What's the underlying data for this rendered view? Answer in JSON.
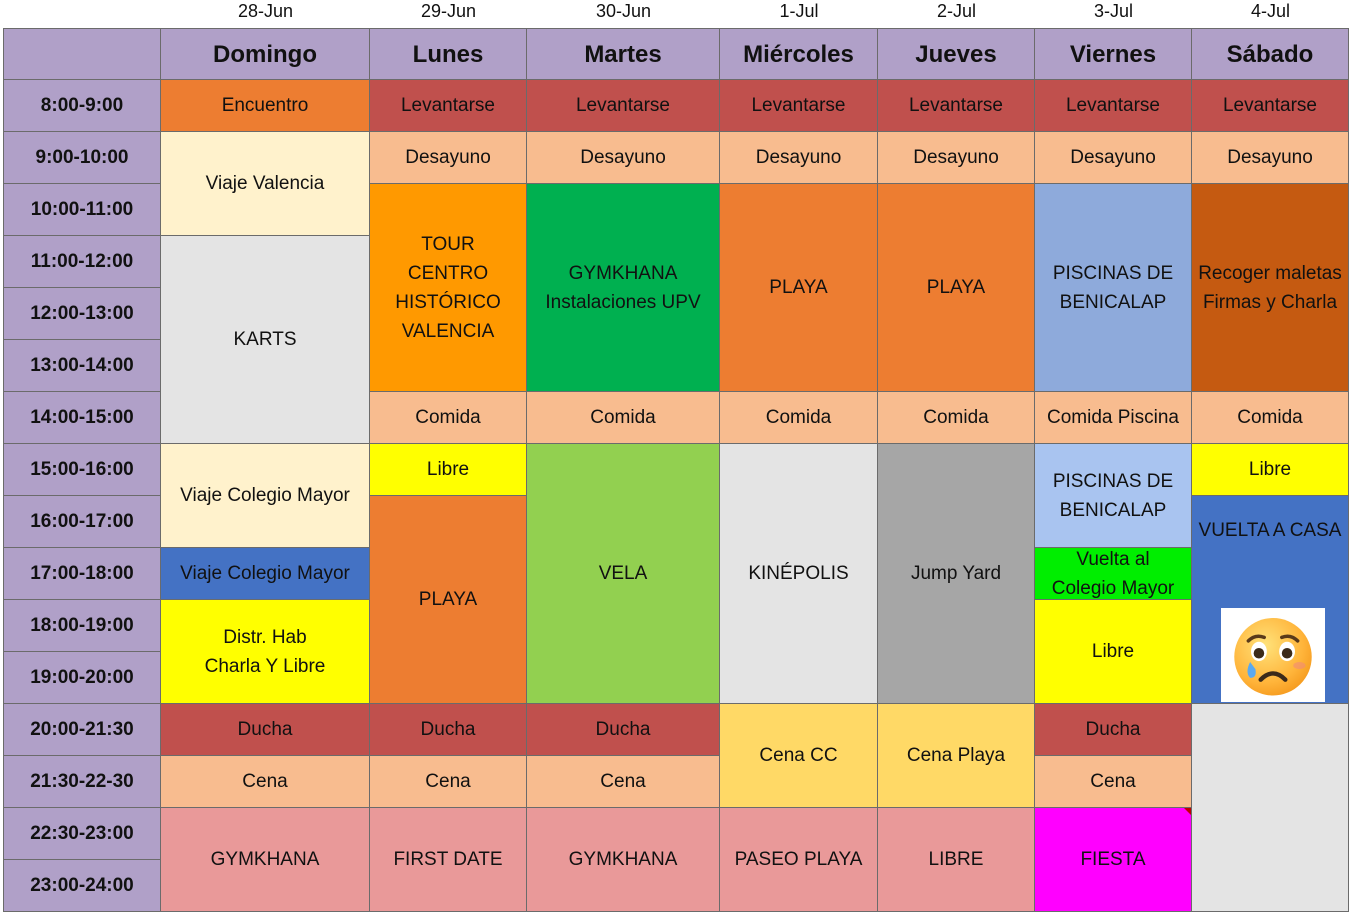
{
  "dates": [
    "28-Jun",
    "29-Jun",
    "30-Jun",
    "1-Jul",
    "2-Jul",
    "3-Jul",
    "4-Jul"
  ],
  "days": [
    "Domingo",
    "Lunes",
    "Martes",
    "Miércoles",
    "Jueves",
    "Viernes",
    "Sábado"
  ],
  "times": [
    "8:00-9:00",
    "9:00-10:00",
    "10:00-11:00",
    "11:00-12:00",
    "12:00-13:00",
    "13:00-14:00",
    "14:00-15:00",
    "15:00-16:00",
    "16:00-17:00",
    "17:00-18:00",
    "18:00-19:00",
    "19:00-20:00",
    "20:00-21:30",
    "21:30-22-30",
    "22:30-23:00",
    "23:00-24:00"
  ],
  "colors": {
    "header": "#b0a0c8",
    "encuentro": "#ed7d31",
    "levantarse": "#c0504d",
    "desayuno": "#f8bc8f",
    "viaje_valencia": "#fff2cc",
    "karts": "#e4e4e4",
    "tour": "#ff9900",
    "gymkhana_upv": "#00b050",
    "playa": "#ed7d31",
    "piscinas": "#8eaadb",
    "recoger": "#c55a11",
    "libre_yellow": "#ffff00",
    "viaje_mayor_light": "#fff2cc",
    "viaje_mayor_blue": "#4472c4",
    "vela": "#92d050",
    "kinepolis": "#e4e4e4",
    "jump_yard": "#a6a6a6",
    "piscinas_light": "#a9c4f0",
    "vuelta_green": "#00ee00",
    "vuelta_casa": "#4472c4",
    "cena_cc": "#ffd966",
    "pink": "#e99999",
    "fiesta": "#ff00ff",
    "empty_grey": "#e4e4e4"
  },
  "events": [
    {
      "text": "Encuentro",
      "col": 1,
      "row": 1,
      "span": 1,
      "color": "encuentro"
    },
    {
      "text": "Levantarse",
      "col": 2,
      "row": 1,
      "span": 1,
      "color": "levantarse"
    },
    {
      "text": "Levantarse",
      "col": 3,
      "row": 1,
      "span": 1,
      "color": "levantarse"
    },
    {
      "text": "Levantarse",
      "col": 4,
      "row": 1,
      "span": 1,
      "color": "levantarse"
    },
    {
      "text": "Levantarse",
      "col": 5,
      "row": 1,
      "span": 1,
      "color": "levantarse"
    },
    {
      "text": "Levantarse",
      "col": 6,
      "row": 1,
      "span": 1,
      "color": "levantarse"
    },
    {
      "text": "Levantarse",
      "col": 7,
      "row": 1,
      "span": 1,
      "color": "levantarse"
    },
    {
      "text": "Viaje Valencia",
      "col": 1,
      "row": 2,
      "span": 2,
      "color": "viaje_valencia"
    },
    {
      "text": "Desayuno",
      "col": 2,
      "row": 2,
      "span": 1,
      "color": "desayuno"
    },
    {
      "text": "Desayuno",
      "col": 3,
      "row": 2,
      "span": 1,
      "color": "desayuno"
    },
    {
      "text": "Desayuno",
      "col": 4,
      "row": 2,
      "span": 1,
      "color": "desayuno"
    },
    {
      "text": "Desayuno",
      "col": 5,
      "row": 2,
      "span": 1,
      "color": "desayuno"
    },
    {
      "text": "Desayuno",
      "col": 6,
      "row": 2,
      "span": 1,
      "color": "desayuno"
    },
    {
      "text": "Desayuno",
      "col": 7,
      "row": 2,
      "span": 1,
      "color": "desayuno"
    },
    {
      "text": "TOUR\nCENTRO\nHISTÓRICO\nVALENCIA",
      "col": 2,
      "row": 3,
      "span": 4,
      "color": "tour"
    },
    {
      "text": "GYMKHANA\nInstalaciones UPV",
      "col": 3,
      "row": 3,
      "span": 4,
      "color": "gymkhana_upv"
    },
    {
      "text": "PLAYA",
      "col": 4,
      "row": 3,
      "span": 4,
      "color": "playa"
    },
    {
      "text": "PLAYA",
      "col": 5,
      "row": 3,
      "span": 4,
      "color": "playa"
    },
    {
      "text": "PISCINAS DE\nBENICALAP",
      "col": 6,
      "row": 3,
      "span": 4,
      "color": "piscinas"
    },
    {
      "text": "Recoger maletas\nFirmas y Charla",
      "col": 7,
      "row": 3,
      "span": 4,
      "color": "recoger"
    },
    {
      "text": "KARTS",
      "col": 1,
      "row": 4,
      "span": 4,
      "color": "karts"
    },
    {
      "text": "Comida",
      "col": 2,
      "row": 7,
      "span": 1,
      "color": "desayuno"
    },
    {
      "text": "Comida",
      "col": 3,
      "row": 7,
      "span": 1,
      "color": "desayuno"
    },
    {
      "text": "Comida",
      "col": 4,
      "row": 7,
      "span": 1,
      "color": "desayuno"
    },
    {
      "text": "Comida",
      "col": 5,
      "row": 7,
      "span": 1,
      "color": "desayuno"
    },
    {
      "text": "Comida Piscina",
      "col": 6,
      "row": 7,
      "span": 1,
      "color": "desayuno"
    },
    {
      "text": "Comida",
      "col": 7,
      "row": 7,
      "span": 1,
      "color": "desayuno"
    },
    {
      "text": "Viaje Colegio Mayor",
      "col": 1,
      "row": 8,
      "span": 2,
      "color": "viaje_mayor_light"
    },
    {
      "text": "Libre",
      "col": 2,
      "row": 8,
      "span": 1,
      "color": "libre_yellow"
    },
    {
      "text": "VELA",
      "col": 3,
      "row": 8,
      "span": 5,
      "color": "vela"
    },
    {
      "text": "KINÉPOLIS",
      "col": 4,
      "row": 8,
      "span": 5,
      "color": "kinepolis"
    },
    {
      "text": "Jump Yard",
      "col": 5,
      "row": 8,
      "span": 5,
      "color": "jump_yard"
    },
    {
      "text": "PISCINAS DE\nBENICALAP",
      "col": 6,
      "row": 8,
      "span": 2,
      "color": "piscinas_light"
    },
    {
      "text": "Libre",
      "col": 7,
      "row": 8,
      "span": 1,
      "color": "libre_yellow"
    },
    {
      "text": "PLAYA",
      "col": 2,
      "row": 9,
      "span": 4,
      "color": "playa"
    },
    {
      "text": "VUELTA A CASA",
      "col": 7,
      "row": 9,
      "span": 4,
      "color": "vuelta_casa",
      "valign": "top"
    },
    {
      "text": "Viaje Colegio Mayor",
      "col": 1,
      "row": 10,
      "span": 1,
      "color": "viaje_mayor_blue"
    },
    {
      "text": "Vuelta al\nColegio Mayor",
      "col": 6,
      "row": 10,
      "span": 1,
      "color": "vuelta_green"
    },
    {
      "text": "Distr. Hab\nCharla Y Libre",
      "col": 1,
      "row": 11,
      "span": 2,
      "color": "libre_yellow"
    },
    {
      "text": "Libre",
      "col": 6,
      "row": 11,
      "span": 2,
      "color": "libre_yellow"
    },
    {
      "text": "Ducha",
      "col": 1,
      "row": 13,
      "span": 1,
      "color": "levantarse"
    },
    {
      "text": "Ducha",
      "col": 2,
      "row": 13,
      "span": 1,
      "color": "levantarse"
    },
    {
      "text": "Ducha",
      "col": 3,
      "row": 13,
      "span": 1,
      "color": "levantarse"
    },
    {
      "text": "Cena CC",
      "col": 4,
      "row": 13,
      "span": 2,
      "color": "cena_cc"
    },
    {
      "text": "Cena Playa",
      "col": 5,
      "row": 13,
      "span": 2,
      "color": "cena_cc"
    },
    {
      "text": "Ducha",
      "col": 6,
      "row": 13,
      "span": 1,
      "color": "levantarse"
    },
    {
      "text": "",
      "col": 7,
      "row": 13,
      "span": 4,
      "color": "empty_grey"
    },
    {
      "text": "Cena",
      "col": 1,
      "row": 14,
      "span": 1,
      "color": "desayuno"
    },
    {
      "text": "Cena",
      "col": 2,
      "row": 14,
      "span": 1,
      "color": "desayuno"
    },
    {
      "text": "Cena",
      "col": 3,
      "row": 14,
      "span": 1,
      "color": "desayuno"
    },
    {
      "text": "Cena",
      "col": 6,
      "row": 14,
      "span": 1,
      "color": "desayuno"
    },
    {
      "text": "GYMKHANA",
      "col": 1,
      "row": 15,
      "span": 2,
      "color": "pink"
    },
    {
      "text": "FIRST DATE",
      "col": 2,
      "row": 15,
      "span": 2,
      "color": "pink"
    },
    {
      "text": "GYMKHANA",
      "col": 3,
      "row": 15,
      "span": 2,
      "color": "pink"
    },
    {
      "text": "PASEO PLAYA",
      "col": 4,
      "row": 15,
      "span": 2,
      "color": "pink"
    },
    {
      "text": "LIBRE",
      "col": 5,
      "row": 15,
      "span": 2,
      "color": "pink"
    },
    {
      "text": "FIESTA",
      "col": 6,
      "row": 15,
      "span": 2,
      "color": "fiesta",
      "marker": true
    }
  ],
  "emoji": {
    "icon": "sad-tear-face-icon"
  }
}
